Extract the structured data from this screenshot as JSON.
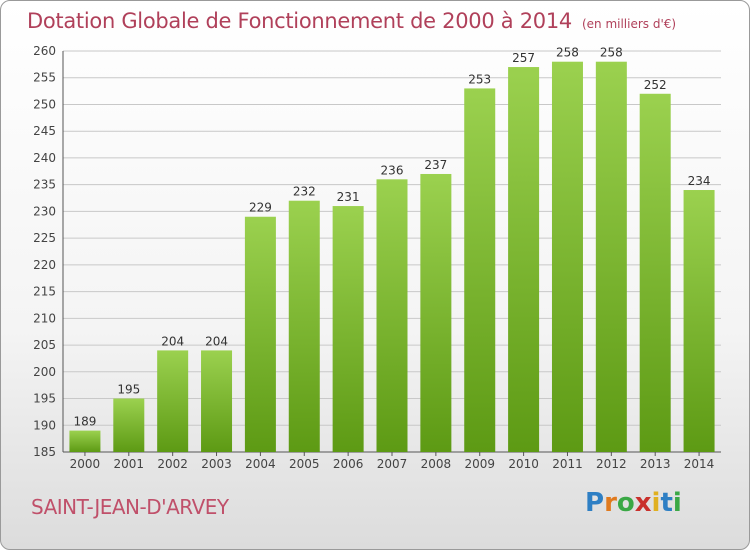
{
  "title": "Dotation Globale de Fonctionnement de 2000 à 2014",
  "unit_note": "(en milliers d'€)",
  "commune": "SAINT-JEAN-D'ARVEY",
  "logo": {
    "letters": [
      "P",
      "r",
      "o",
      "x",
      "i",
      "t",
      "i"
    ],
    "colors": [
      "#2e7fc4",
      "#e07a1e",
      "#3aa845",
      "#c9302c",
      "#e0b020",
      "#2e7fc4",
      "#3aa845"
    ]
  },
  "colors": {
    "bar_top": "#9bd14f",
    "bar_bottom": "#5d9a14",
    "title": "#b0405a",
    "grid": "#c8c8c8",
    "axis_text": "#444444"
  },
  "chart_data": {
    "type": "bar",
    "title": "Dotation Globale de Fonctionnement de 2000 à 2014",
    "xlabel": "",
    "ylabel": "",
    "ylim": [
      185,
      260
    ],
    "ytick_step": 5,
    "grid": true,
    "categories": [
      "2000",
      "2001",
      "2002",
      "2003",
      "2004",
      "2005",
      "2006",
      "2007",
      "2008",
      "2009",
      "2010",
      "2011",
      "2012",
      "2013",
      "2014"
    ],
    "values": [
      189,
      195,
      204,
      204,
      229,
      232,
      231,
      236,
      237,
      253,
      257,
      258,
      258,
      252,
      234
    ]
  }
}
